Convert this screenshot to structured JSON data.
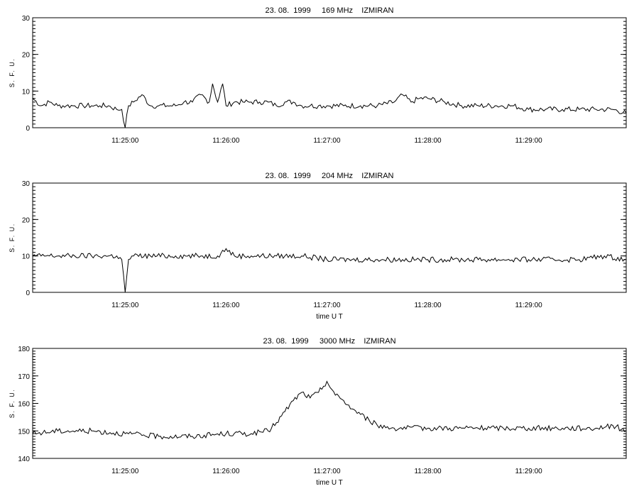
{
  "chart_data": [
    {
      "type": "line",
      "title": "23. 08.  1999     169 MHz    IZMIRAN",
      "ylabel": "S. F. U.",
      "xlabel": "",
      "ylim": [
        0,
        30
      ],
      "yticks": [
        "0",
        "10",
        "20",
        "30"
      ],
      "xlim": [
        "11:24:05",
        "11:29:58"
      ],
      "xticks": [
        "11:25:00",
        "11:26:00",
        "11:27:00",
        "11:28:00",
        "11:29:00"
      ],
      "series": [
        {
          "x": [
            "11:24:05",
            "11:24:10",
            "11:24:15",
            "11:24:20",
            "11:24:25",
            "11:24:30",
            "11:24:35",
            "11:24:40",
            "11:24:45",
            "11:24:50",
            "11:24:55",
            "11:24:58",
            "11:25:00",
            "11:25:02",
            "11:25:05",
            "11:25:10",
            "11:25:15",
            "11:25:20",
            "11:25:25",
            "11:25:30",
            "11:25:35",
            "11:25:40",
            "11:25:45",
            "11:25:50",
            "11:25:52",
            "11:25:55",
            "11:25:58",
            "11:26:00",
            "11:26:05",
            "11:26:10",
            "11:26:15",
            "11:26:20",
            "11:26:25",
            "11:26:30",
            "11:26:35",
            "11:26:40",
            "11:26:45",
            "11:26:50",
            "11:26:55",
            "11:27:00",
            "11:27:10",
            "11:27:20",
            "11:27:30",
            "11:27:40",
            "11:27:45",
            "11:27:50",
            "11:27:55",
            "11:28:00",
            "11:28:10",
            "11:28:20",
            "11:28:30",
            "11:28:40",
            "11:28:50",
            "11:29:00",
            "11:29:10",
            "11:29:20",
            "11:29:30",
            "11:29:40",
            "11:29:50",
            "11:29:58"
          ],
          "y": [
            8,
            6,
            7,
            6,
            6,
            6,
            6,
            6,
            6,
            6,
            5,
            5,
            0,
            6,
            7,
            9,
            6,
            6,
            6,
            6,
            7,
            7,
            9,
            7,
            12,
            7,
            12,
            6,
            7,
            7,
            7,
            7,
            7,
            6,
            7,
            7,
            6,
            6,
            6,
            6,
            6,
            6,
            6,
            7,
            9,
            7,
            8,
            8,
            7,
            6,
            6,
            6,
            6,
            5,
            5,
            5,
            5,
            5,
            5,
            4
          ]
        }
      ]
    },
    {
      "type": "line",
      "title": "23. 08.  1999     204 MHz    IZMIRAN",
      "ylabel": "S. F. U.",
      "xlabel": "time  U T",
      "ylim": [
        0,
        30
      ],
      "yticks": [
        "0",
        "10",
        "20",
        "30"
      ],
      "xlim": [
        "11:24:05",
        "11:29:58"
      ],
      "xticks": [
        "11:25:00",
        "11:26:00",
        "11:27:00",
        "11:28:00",
        "11:29:00"
      ],
      "series": [
        {
          "x": [
            "11:24:05",
            "11:24:10",
            "11:24:20",
            "11:24:30",
            "11:24:40",
            "11:24:50",
            "11:24:55",
            "11:24:58",
            "11:25:00",
            "11:25:02",
            "11:25:05",
            "11:25:15",
            "11:25:30",
            "11:25:45",
            "11:25:55",
            "11:26:00",
            "11:26:05",
            "11:26:15",
            "11:26:30",
            "11:26:45",
            "11:27:00",
            "11:27:15",
            "11:27:30",
            "11:27:45",
            "11:28:00",
            "11:28:15",
            "11:28:30",
            "11:28:45",
            "11:29:00",
            "11:29:15",
            "11:29:30",
            "11:29:45",
            "11:29:58"
          ],
          "y": [
            10,
            10,
            10,
            10,
            10,
            10,
            10,
            9,
            0,
            9,
            10,
            10,
            10,
            10,
            10,
            12,
            10,
            10,
            10,
            10,
            9,
            9,
            9,
            9,
            9,
            9,
            9,
            9,
            9,
            9,
            9,
            10,
            9
          ]
        }
      ]
    },
    {
      "type": "line",
      "title": "23. 08.  1999     3000 MHz    IZMIRAN",
      "ylabel": "S. F. U.",
      "xlabel": "time  U T",
      "ylim": [
        140,
        180
      ],
      "yticks": [
        "140",
        "150",
        "160",
        "170",
        "180"
      ],
      "xlim": [
        "11:24:05",
        "11:29:58"
      ],
      "xticks": [
        "11:25:00",
        "11:26:00",
        "11:27:00",
        "11:28:00",
        "11:29:00"
      ],
      "series": [
        {
          "x": [
            "11:24:05",
            "11:24:20",
            "11:24:40",
            "11:25:00",
            "11:25:20",
            "11:25:40",
            "11:26:00",
            "11:26:15",
            "11:26:25",
            "11:26:30",
            "11:26:35",
            "11:26:40",
            "11:26:45",
            "11:26:50",
            "11:26:55",
            "11:27:00",
            "11:27:05",
            "11:27:10",
            "11:27:15",
            "11:27:20",
            "11:27:25",
            "11:27:30",
            "11:27:40",
            "11:28:00",
            "11:28:20",
            "11:28:40",
            "11:29:00",
            "11:29:20",
            "11:29:40",
            "11:29:50",
            "11:29:58"
          ],
          "y": [
            149,
            150,
            150,
            149,
            148,
            148,
            149,
            149,
            150,
            153,
            157,
            161,
            164,
            162,
            164,
            168,
            163,
            161,
            158,
            156,
            154,
            152,
            151,
            151,
            151,
            151,
            151,
            151,
            151,
            152,
            150
          ]
        }
      ]
    }
  ]
}
